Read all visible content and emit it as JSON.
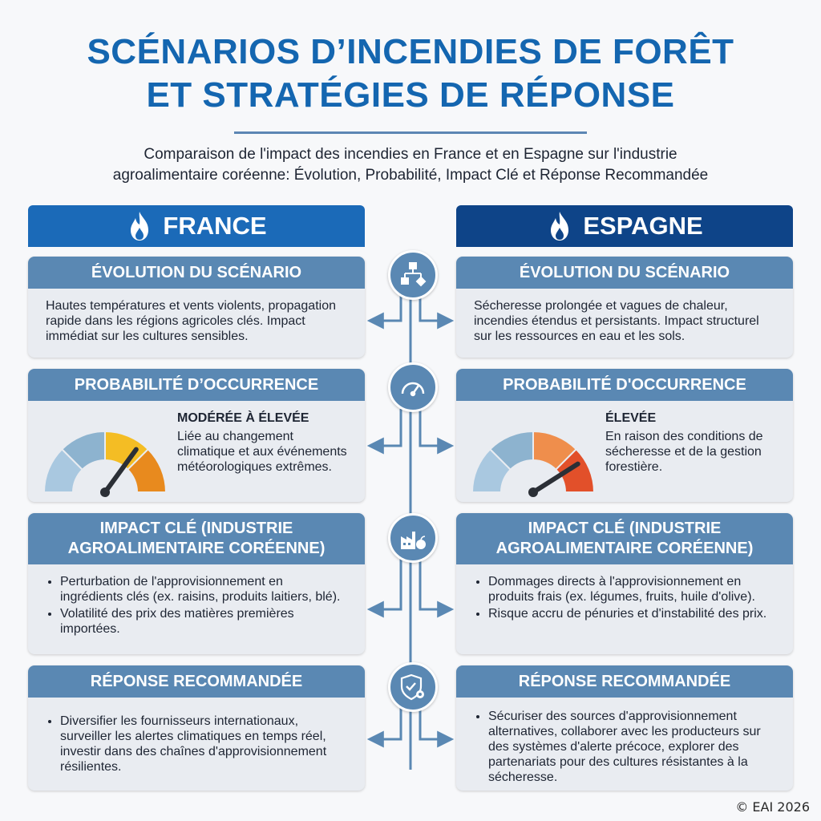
{
  "title_line1": "SCÉNARIOS D’INCENDIES DE FORÊT",
  "title_line2": "ET STRATÉGIES DE RÉPONSE",
  "subtitle_line1": "Comparaison de l'impact des incendies en France et en Espagne sur l'industrie",
  "subtitle_line2": "agroalimentaire coréenne: Évolution, Probabilité, Impact Clé et Réponse Recommandée",
  "colors": {
    "title": "#1466b0",
    "france": "#1b6ab8",
    "spain": "#0e4488",
    "section": "#5a88b3",
    "card": "#e9ecf1"
  },
  "france": {
    "name": "FRANCE",
    "evolution_head": "ÉVOLUTION DU SCÉNARIO",
    "evolution_text": "Hautes températures et vents violents, propagation rapide dans les régions agricoles clés. Impact immédiat sur les cultures sensibles.",
    "prob_head": "PROBABILITÉ D’OCCURRENCE",
    "prob_level": "MODÉRÉE À ÉLEVÉE",
    "prob_text": "Liée au changement climatique et aux événements météorologiques extrêmes.",
    "gauge_value": 0.7,
    "impact_head": "IMPACT CLÉ (INDUSTRIE AGROALIMENTAIRE CORÉENNE)",
    "impact_items": [
      "Perturbation de l'approvisionnement en ingrédients clés (ex. raisins, produits laitiers, blé).",
      "Volatilité des prix des matières premières importées."
    ],
    "response_head": "RÉPONSE RECOMMANDÉE",
    "response_items": [
      "Diversifier les fournisseurs internationaux, surveiller les alertes climatiques en temps réel, investir dans des chaînes d'approvisionnement résilientes."
    ]
  },
  "spain": {
    "name": "ESPAGNE",
    "evolution_head": "ÉVOLUTION DU SCÉNARIO",
    "evolution_text": "Sécheresse prolongée et vagues de chaleur, incendies étendus et persistants. Impact structurel sur les ressources en eau et les sols.",
    "prob_head": "PROBABILITÉ D'OCCURRENCE",
    "prob_level": "ÉLEVÉE",
    "prob_text": "En raison des conditions de sécheresse et de la gestion forestière.",
    "gauge_value": 0.82,
    "impact_head": "IMPACT CLÉ (INDUSTRIE AGROALIMENTAIRE CORÉENNE)",
    "impact_items": [
      "Dommages directs à l'approvisionnement en produits frais (ex. légumes, fruits, huile d'olive).",
      "Risque accru de pénuries et d'instabilité des prix."
    ],
    "response_head": "RÉPONSE RECOMMANDÉE",
    "response_items": [
      "Sécuriser des sources d'approvisionnement alternatives, collaborer avec les producteurs sur des systèmes d'alerte précoce, explorer des partenariats pour des cultures résistantes à la sécheresse."
    ]
  },
  "icons": [
    "flowchart-icon",
    "gauge-icon",
    "factory-apple-icon",
    "shield-gear-icon"
  ],
  "copyright": "© EAI 2026"
}
